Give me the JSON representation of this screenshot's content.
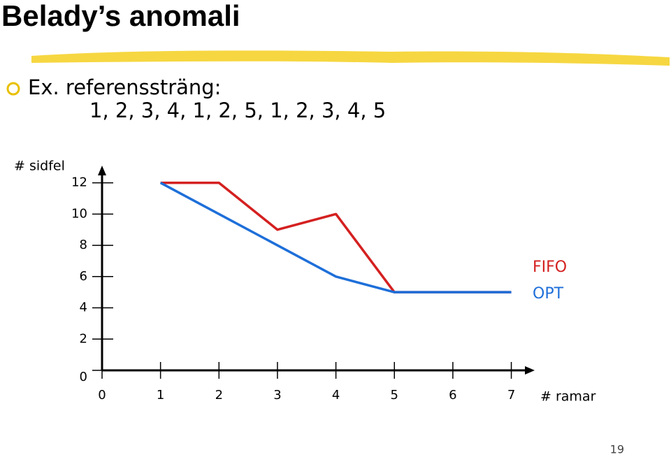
{
  "title": "Belady’s anomali",
  "bullet": {
    "label": "Ex. referenssträng:",
    "sequence": "1, 2, 3, 4, 1, 2, 5, 1, 2, 3, 4, 5"
  },
  "page_number": "19",
  "chart_data": {
    "type": "line",
    "y_label": "# sidfel",
    "x_label": "# ramar",
    "x": [
      1,
      2,
      3,
      4,
      5,
      6,
      7
    ],
    "series": [
      {
        "name": "FIFO",
        "color": "#d42020",
        "values": [
          12,
          12,
          9,
          10,
          5,
          5,
          5
        ]
      },
      {
        "name": "OPT",
        "color": "#1e6fd9",
        "values": [
          12,
          10,
          8,
          6,
          5,
          5,
          5
        ]
      }
    ],
    "xlim": [
      0,
      7.4
    ],
    "ylim": [
      0,
      13.1
    ],
    "xticks": [
      0,
      1,
      2,
      3,
      4,
      5,
      6,
      7
    ],
    "yticks": [
      0,
      2,
      4,
      6,
      8,
      10,
      12
    ],
    "legend": "right"
  }
}
